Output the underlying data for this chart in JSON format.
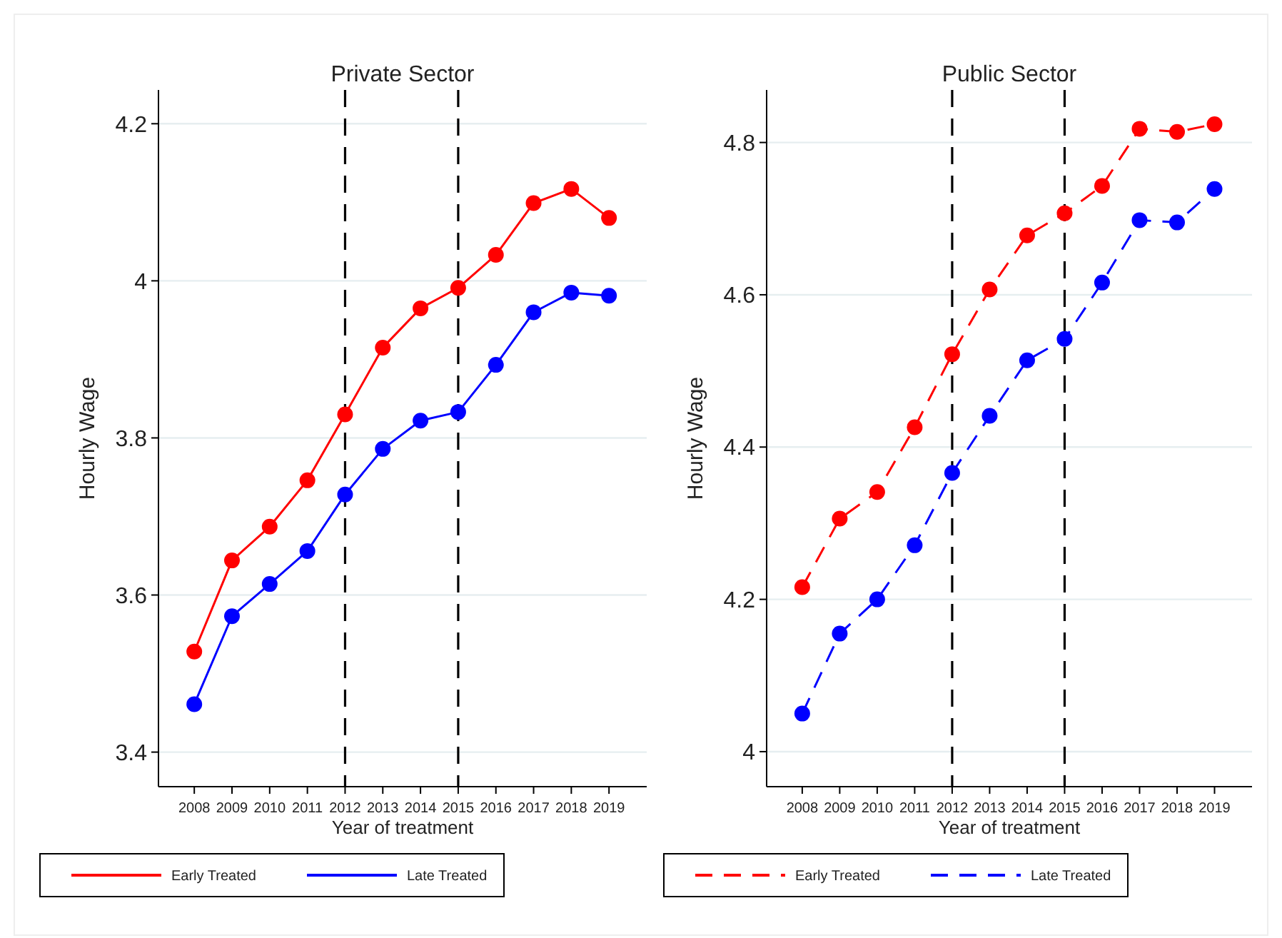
{
  "chart_data": [
    {
      "type": "line",
      "title": "Private Sector",
      "xlabel": "Year of treatment",
      "ylabel": "Hourly Wage",
      "x": [
        2008,
        2009,
        2010,
        2011,
        2012,
        2013,
        2014,
        2015,
        2016,
        2017,
        2018,
        2019
      ],
      "xlim": [
        2007.05,
        2020
      ],
      "xticks": [
        2008,
        2009,
        2010,
        2011,
        2012,
        2013,
        2014,
        2015,
        2016,
        2017,
        2018,
        2019
      ],
      "ylim": [
        3.356,
        4.243
      ],
      "yticks": [
        {
          "value": 3.4,
          "label": "3.4"
        },
        {
          "value": 3.6,
          "label": "3.6"
        },
        {
          "value": 3.8,
          "label": "3.8"
        },
        {
          "value": 4,
          "label": "4"
        },
        {
          "value": 4.2,
          "label": "4.2"
        }
      ],
      "grid": "y",
      "legend": "bottom",
      "marker": "circle",
      "line_style": "solid",
      "ref_lines": [
        {
          "axis": "x",
          "value": 2012,
          "color": "#000000",
          "line_style": "dashed"
        },
        {
          "axis": "x",
          "value": 2015,
          "color": "#000000",
          "line_style": "dashed"
        }
      ],
      "series": [
        {
          "name": "Early Treated",
          "color": "#ff0000",
          "values": [
            3.528,
            3.644,
            3.687,
            3.746,
            3.83,
            3.915,
            3.965,
            3.991,
            4.033,
            4.099,
            4.117,
            4.08
          ]
        },
        {
          "name": "Late Treated",
          "color": "#0000ff",
          "values": [
            3.461,
            3.573,
            3.614,
            3.656,
            3.728,
            3.786,
            3.822,
            3.833,
            3.893,
            3.96,
            3.985,
            3.981
          ]
        }
      ]
    },
    {
      "type": "line",
      "title": "Public Sector",
      "xlabel": "Year of treatment",
      "ylabel": "Hourly Wage",
      "x": [
        2008,
        2009,
        2010,
        2011,
        2012,
        2013,
        2014,
        2015,
        2016,
        2017,
        2018,
        2019
      ],
      "xlim": [
        2007.05,
        2020
      ],
      "xticks": [
        2008,
        2009,
        2010,
        2011,
        2012,
        2013,
        2014,
        2015,
        2016,
        2017,
        2018,
        2019
      ],
      "ylim": [
        3.954,
        4.869
      ],
      "yticks": [
        {
          "value": 4,
          "label": "4"
        },
        {
          "value": 4.2,
          "label": "4.2"
        },
        {
          "value": 4.4,
          "label": "4.4"
        },
        {
          "value": 4.6,
          "label": "4.6"
        },
        {
          "value": 4.8,
          "label": "4.8"
        }
      ],
      "grid": "y",
      "legend": "bottom",
      "marker": "circle",
      "line_style": "dashed",
      "ref_lines": [
        {
          "axis": "x",
          "value": 2012,
          "color": "#000000",
          "line_style": "dashed"
        },
        {
          "axis": "x",
          "value": 2015,
          "color": "#000000",
          "line_style": "dashed"
        }
      ],
      "series": [
        {
          "name": "Early Treated",
          "color": "#ff0000",
          "values": [
            4.216,
            4.306,
            4.341,
            4.426,
            4.522,
            4.607,
            4.678,
            4.707,
            4.743,
            4.818,
            4.814,
            4.824
          ]
        },
        {
          "name": "Late Treated",
          "color": "#0000ff",
          "values": [
            4.05,
            4.155,
            4.2,
            4.271,
            4.366,
            4.441,
            4.514,
            4.542,
            4.616,
            4.698,
            4.695,
            4.739
          ]
        }
      ]
    }
  ]
}
